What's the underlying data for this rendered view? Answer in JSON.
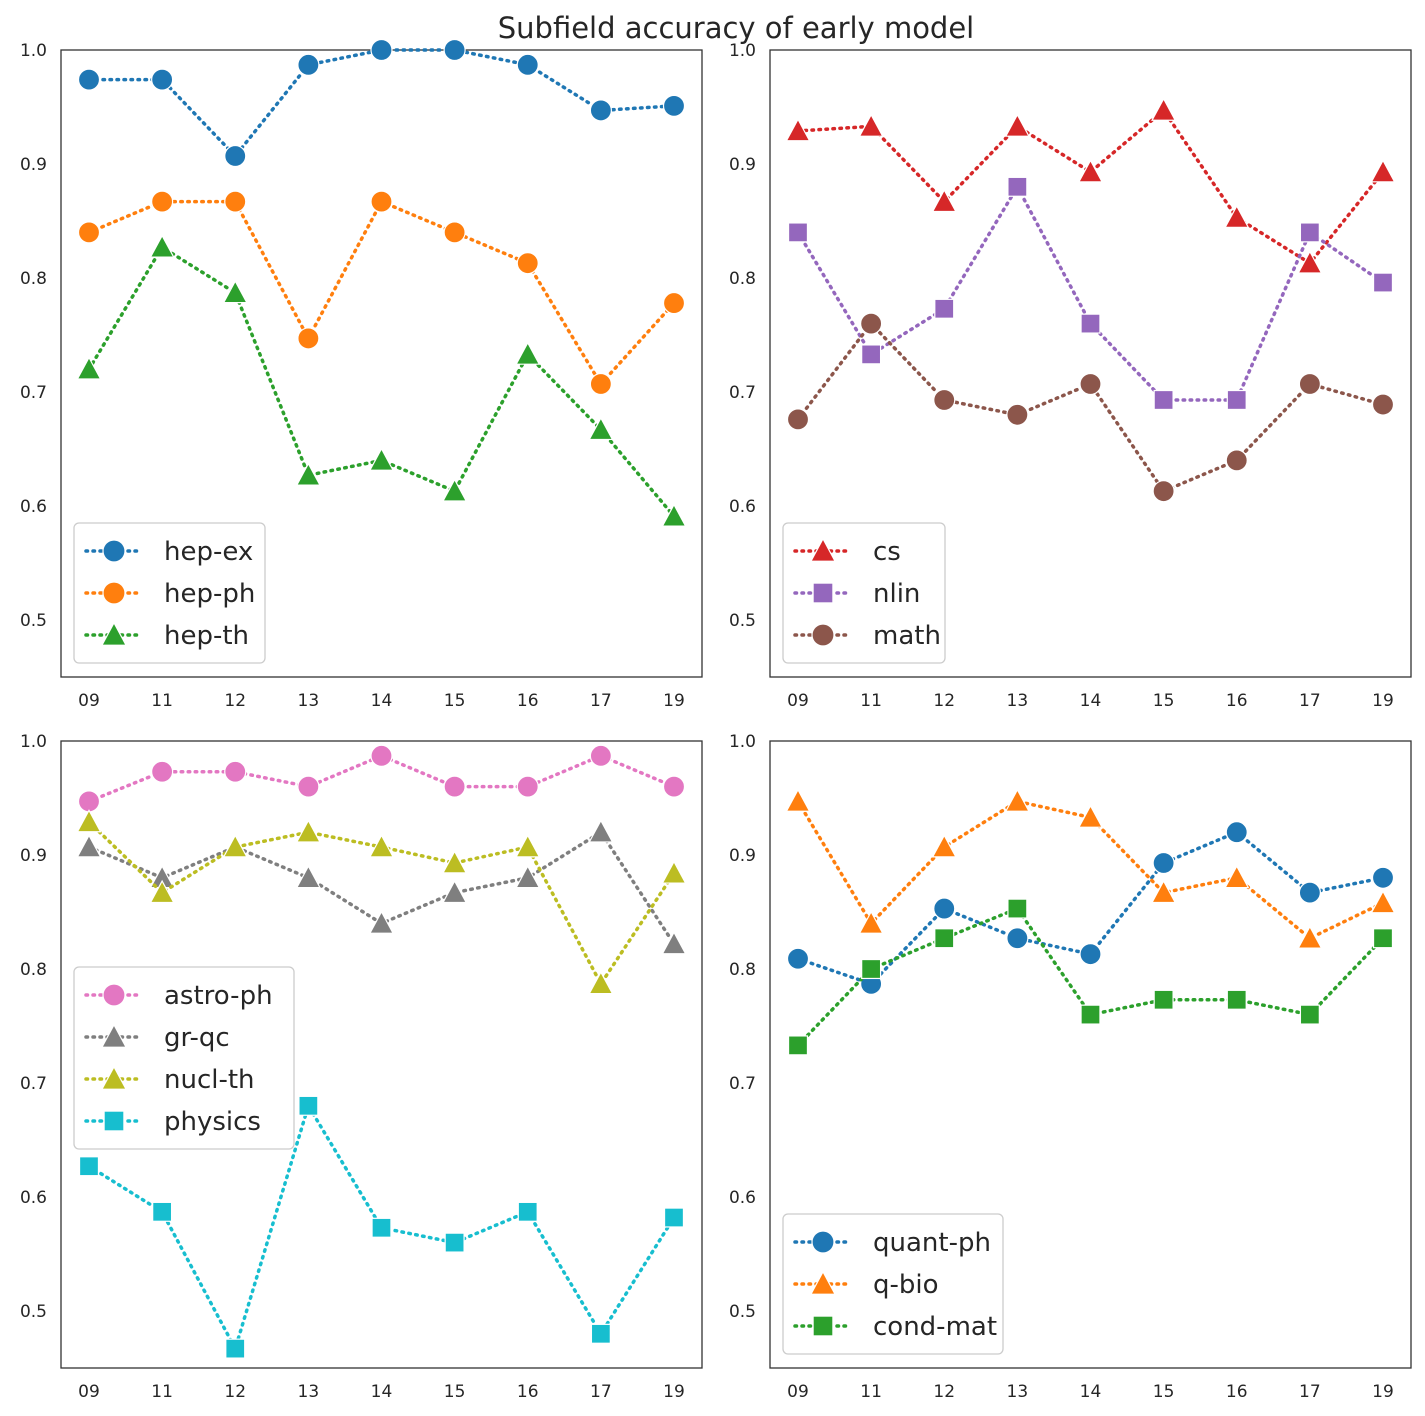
{
  "chart_data": {
    "title": "Subfield accuracy of early model",
    "type": "line",
    "categories": [
      "09",
      "11",
      "12",
      "13",
      "14",
      "15",
      "16",
      "17",
      "19"
    ],
    "ylim": [
      0.45,
      1.0
    ],
    "yticks": [
      "0.5",
      "0.6",
      "0.7",
      "0.8",
      "0.9",
      "1.0"
    ],
    "grid": false,
    "panels": [
      {
        "legend_position": "lower-left",
        "series": [
          {
            "name": "hep-ex",
            "color": "#1f77b4",
            "marker": "circle",
            "values": [
              0.974,
              0.974,
              0.907,
              0.987,
              1.0,
              1.0,
              0.987,
              0.947,
              0.951
            ]
          },
          {
            "name": "hep-ph",
            "color": "#ff7f0e",
            "marker": "circle",
            "values": [
              0.84,
              0.867,
              0.867,
              0.747,
              0.867,
              0.84,
              0.813,
              0.707,
              0.778
            ]
          },
          {
            "name": "hep-th",
            "color": "#2ca02c",
            "marker": "triangle",
            "values": [
              0.72,
              0.827,
              0.787,
              0.627,
              0.64,
              0.613,
              0.733,
              0.667,
              0.591
            ]
          }
        ]
      },
      {
        "legend_position": "lower-left",
        "series": [
          {
            "name": "cs",
            "color": "#d62728",
            "marker": "triangle",
            "values": [
              0.929,
              0.933,
              0.867,
              0.933,
              0.893,
              0.947,
              0.853,
              0.813,
              0.893
            ]
          },
          {
            "name": "nlin",
            "color": "#9467bd",
            "marker": "square",
            "values": [
              0.84,
              0.733,
              0.773,
              0.88,
              0.76,
              0.693,
              0.693,
              0.84,
              0.796
            ]
          },
          {
            "name": "math",
            "color": "#8c564b",
            "marker": "circle",
            "values": [
              0.676,
              0.76,
              0.693,
              0.68,
              0.707,
              0.613,
              0.64,
              0.707,
              0.689
            ]
          }
        ]
      },
      {
        "legend_position": "center-left",
        "series": [
          {
            "name": "astro-ph",
            "color": "#e377c2",
            "marker": "circle",
            "values": [
              0.947,
              0.973,
              0.973,
              0.96,
              0.987,
              0.96,
              0.96,
              0.987,
              0.96
            ]
          },
          {
            "name": "gr-qc",
            "color": "#7f7f7f",
            "marker": "triangle",
            "values": [
              0.907,
              0.88,
              0.907,
              0.88,
              0.84,
              0.867,
              0.88,
              0.92,
              0.822
            ]
          },
          {
            "name": "nucl-th",
            "color": "#bcbd22",
            "marker": "triangle",
            "values": [
              0.929,
              0.867,
              0.907,
              0.92,
              0.907,
              0.893,
              0.907,
              0.787,
              0.884
            ]
          },
          {
            "name": "physics",
            "color": "#17becf",
            "marker": "square",
            "values": [
              0.627,
              0.587,
              0.467,
              0.68,
              0.573,
              0.56,
              0.587,
              0.48,
              0.582
            ]
          }
        ]
      },
      {
        "legend_position": "lower-left",
        "series": [
          {
            "name": "quant-ph",
            "color": "#1f77b4",
            "marker": "circle",
            "values": [
              0.809,
              0.787,
              0.853,
              0.827,
              0.813,
              0.893,
              0.92,
              0.867,
              0.88
            ]
          },
          {
            "name": "q-bio",
            "color": "#ff7f0e",
            "marker": "triangle",
            "values": [
              0.947,
              0.84,
              0.907,
              0.947,
              0.933,
              0.867,
              0.88,
              0.827,
              0.858
            ]
          },
          {
            "name": "cond-mat",
            "color": "#2ca02c",
            "marker": "square",
            "values": [
              0.733,
              0.8,
              0.827,
              0.853,
              0.76,
              0.773,
              0.773,
              0.76,
              0.827
            ]
          }
        ]
      }
    ]
  }
}
